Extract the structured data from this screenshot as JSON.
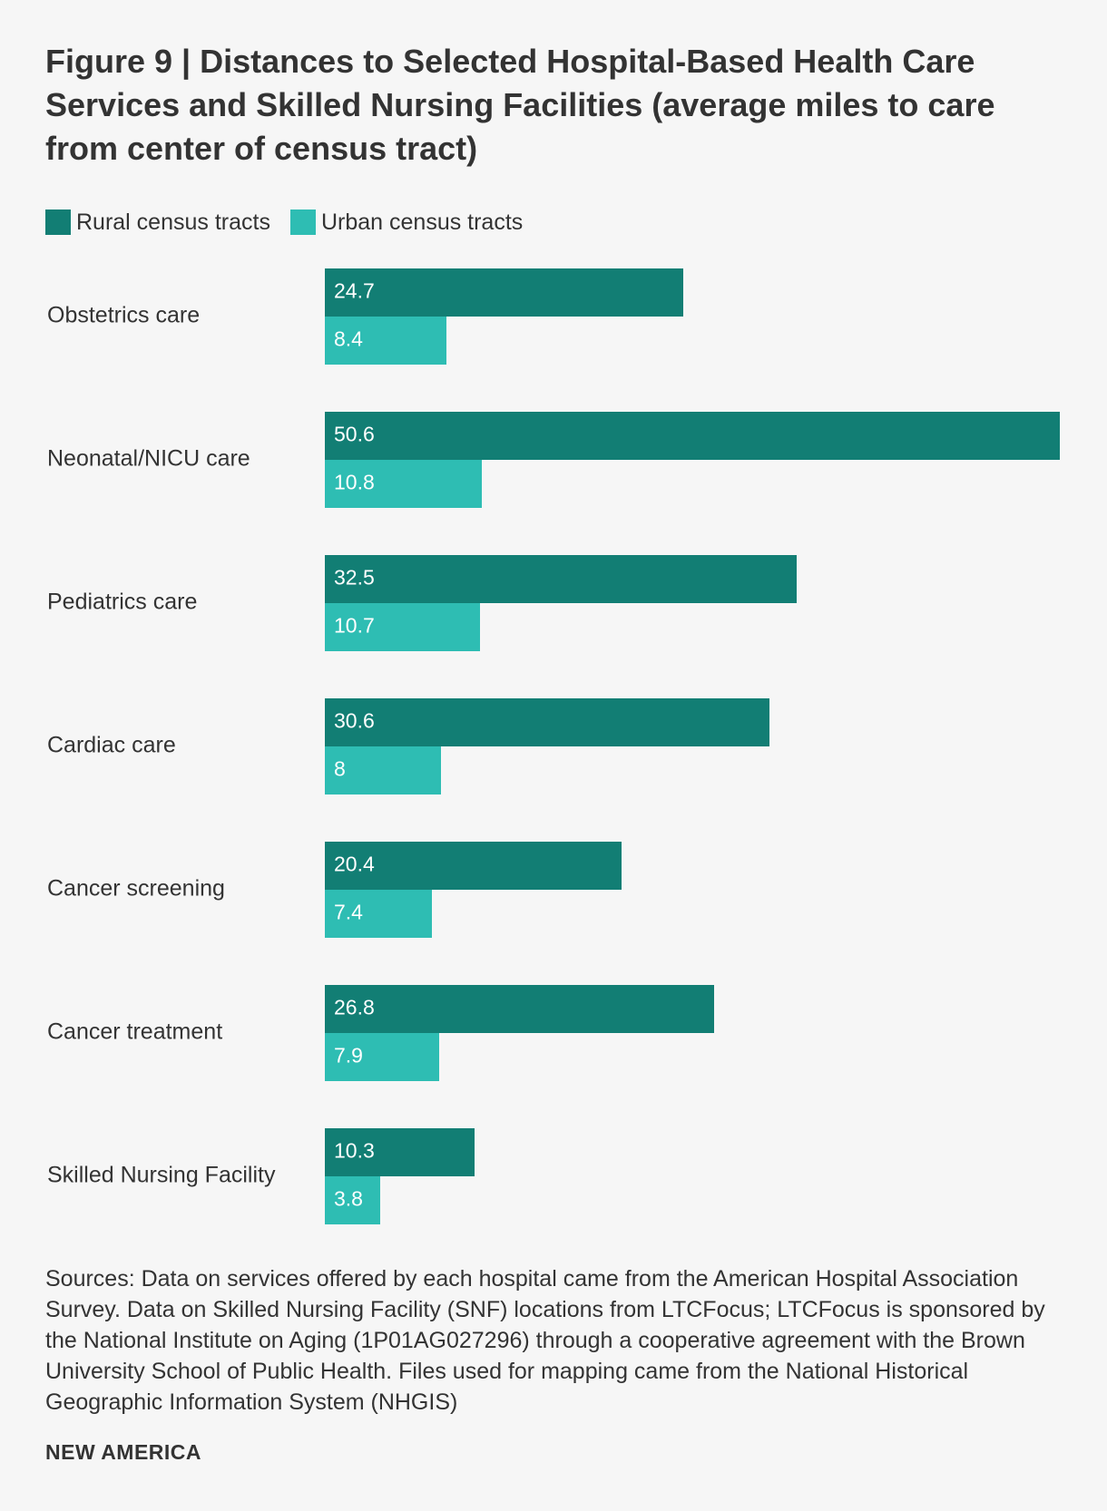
{
  "title": "Figure 9 | Distances to Selected Hospital-Based Health Care Services and Skilled Nursing Facilities (average miles to care from center of census tract)",
  "legend": {
    "rural": "Rural census tracts",
    "urban": "Urban census tracts"
  },
  "colors": {
    "rural": "#127e74",
    "urban": "#2ebdb3"
  },
  "chart_data": {
    "type": "bar",
    "orientation": "horizontal",
    "title": "Figure 9 | Distances to Selected Hospital-Based Health Care Services and Skilled Nursing Facilities (average miles to care from center of census tract)",
    "categories": [
      "Obstetrics care",
      "Neonatal/NICU care",
      "Pediatrics care",
      "Cardiac care",
      "Cancer screening",
      "Cancer treatment",
      "Skilled Nursing Facility"
    ],
    "series": [
      {
        "name": "Rural census tracts",
        "values": [
          24.7,
          50.6,
          32.5,
          30.6,
          20.4,
          26.8,
          10.3
        ]
      },
      {
        "name": "Urban census tracts",
        "values": [
          8.4,
          10.8,
          10.7,
          8,
          7.4,
          7.9,
          3.8
        ]
      }
    ],
    "value_labels": {
      "rural": [
        "24.7",
        "50.6",
        "32.5",
        "30.6",
        "20.4",
        "26.8",
        "10.3"
      ],
      "urban": [
        "8.4",
        "10.8",
        "10.7",
        "8",
        "7.4",
        "7.9",
        "3.8"
      ]
    },
    "xlim": [
      0,
      50.6
    ],
    "grid": false,
    "legend_position": "top-left",
    "xlabel": "",
    "ylabel": ""
  },
  "source": "Sources: Data on services offered by each hospital came from the American Hospital Association Survey. Data on Skilled Nursing Facility (SNF) locations from LTCFocus; LTCFocus is sponsored by the National Institute on Aging (1P01AG027296) through a cooperative agreement with the Brown University School of Public Health. Files used for mapping came from the National Historical Geographic Information System (NHGIS)",
  "brand": "NEW AMERICA"
}
